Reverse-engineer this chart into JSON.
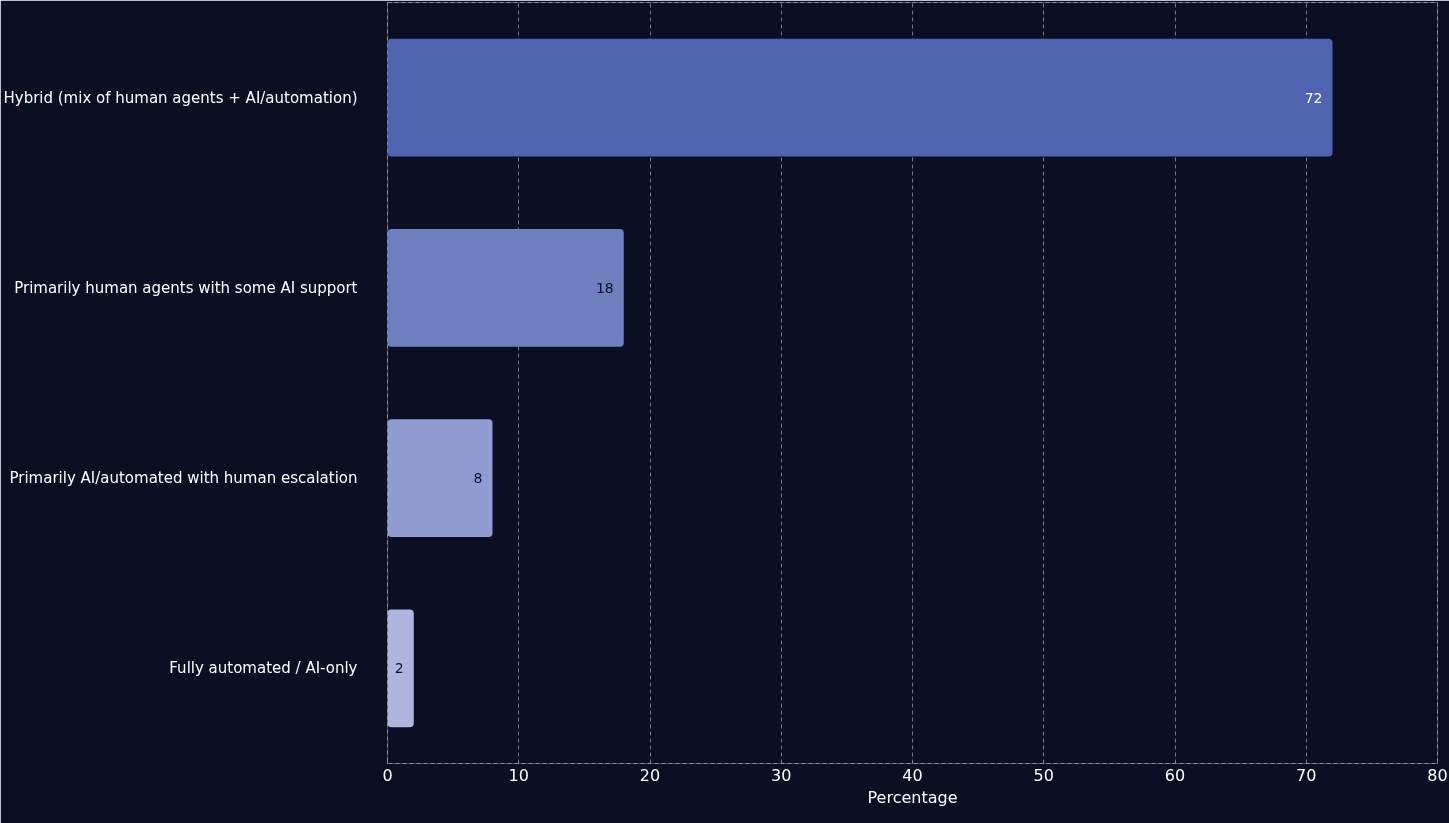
{
  "chart_data": {
    "type": "bar",
    "orientation": "horizontal",
    "xlabel": "Percentage",
    "categories": [
      "Hybrid (mix of human agents + AI/automation)",
      "Primarily human agents with some AI support",
      "Primarily AI/automated with human escalation",
      "Fully automated / AI-only"
    ],
    "values": [
      72,
      18,
      8,
      2
    ],
    "colors": [
      "#5063b0",
      "#6f80c1",
      "#8f9bd1",
      "#aeb6e0"
    ],
    "xlim": [
      0,
      80
    ],
    "xticks": [
      0,
      10,
      20,
      30,
      40,
      50,
      60,
      70,
      80
    ],
    "grid": "x",
    "data_labels": true
  }
}
